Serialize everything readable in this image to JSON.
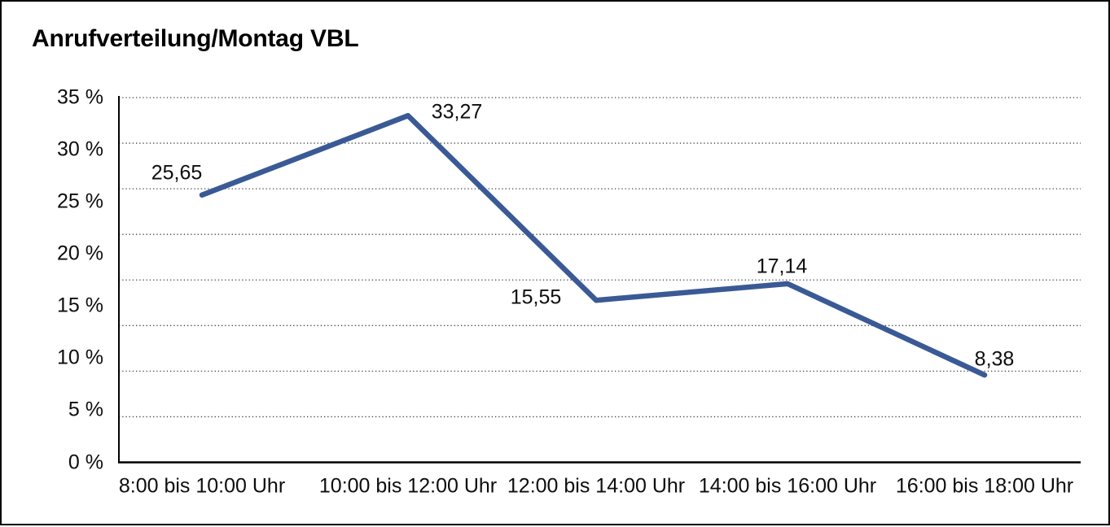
{
  "title": "Anrufverteilung/Montag VBL",
  "chart_data": {
    "type": "line",
    "title": "Anrufverteilung/Montag VBL",
    "categories": [
      "8:00 bis 10:00 Uhr",
      "10:00 bis 12:00 Uhr",
      "12:00 bis 14:00 Uhr",
      "14:00 bis 16:00 Uhr",
      "16:00 bis 18:00 Uhr"
    ],
    "values": [
      25.65,
      33.27,
      15.55,
      17.14,
      8.38
    ],
    "value_labels": [
      "25,65",
      "33,27",
      "15,55",
      "17,14",
      "8,38"
    ],
    "ylim": [
      0,
      35
    ],
    "y_axis": {
      "tick_labels": [
        "35 %",
        "30 %",
        "25 %",
        "20 %",
        "15 %",
        "10 %",
        "5 %",
        "0 %"
      ],
      "tick_values": [
        35,
        30,
        25,
        20,
        15,
        10,
        5,
        0
      ],
      "unit": "%"
    },
    "xlabel": "",
    "ylabel": "",
    "grid": true,
    "gridline_style": "dotted",
    "gridline_count": 9,
    "legend_position": "none",
    "colors": {
      "line": "#3A5A96",
      "axis": "#000000",
      "gridline": "#404040",
      "text": "#0d0d0d",
      "background": "#FFFFFF",
      "frame_border": "#000000"
    }
  }
}
